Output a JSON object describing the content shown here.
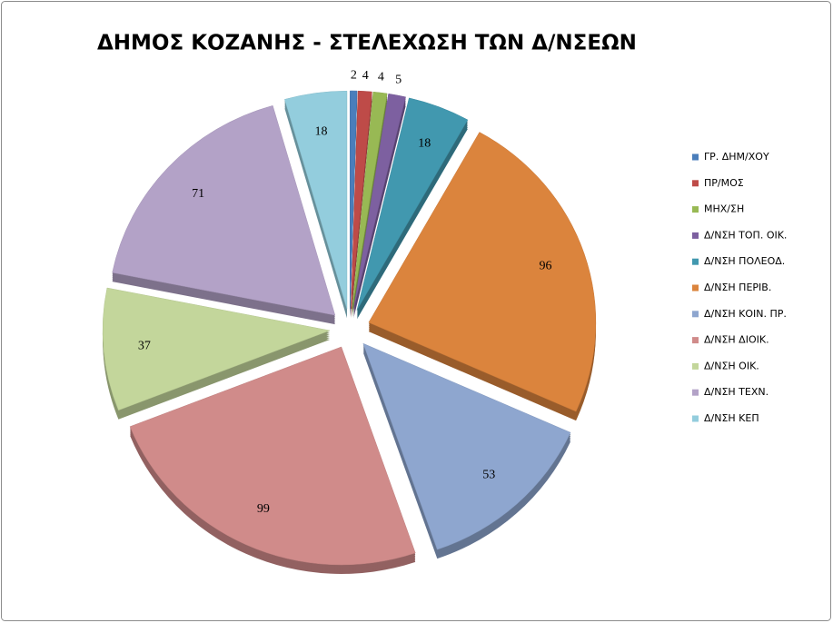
{
  "chart_data": {
    "type": "pie",
    "title": "ΔΗΜΟΣ ΚΟΖΑΝΗΣ  - ΣΤΕΛΕΧΩΣΗ ΤΩΝ Δ/ΝΣΕΩΝ",
    "categories": [
      "ΓΡ. ΔΗΜ/ΧΟΥ",
      "ΠΡ/ΜΟΣ",
      "ΜΗΧ/ΣΗ",
      "Δ/ΝΣΗ ΤΟΠ. ΟΙΚ.",
      "Δ/ΝΣΗ ΠΟΛΕΟΔ.",
      "Δ/ΝΣΗ ΠΕΡΙΒ.",
      "Δ/ΝΣΗ ΚΟΙΝ. ΠΡ.",
      "Δ/ΝΣΗ ΔΙΟΙΚ.",
      "Δ/ΝΣΗ ΟΙΚ.",
      "Δ/ΝΣΗ ΤΕΧΝ.",
      "Δ/ΝΣΗ ΚΕΠ"
    ],
    "values": [
      2,
      4,
      4,
      5,
      18,
      96,
      53,
      99,
      37,
      71,
      18
    ],
    "colors": [
      "#4a7ebb",
      "#be4b48",
      "#98b954",
      "#7d60a0",
      "#4198af",
      "#db843d",
      "#8ea6cf",
      "#d08b8a",
      "#c3d69b",
      "#b3a2c7",
      "#93cddd"
    ],
    "legend": "right"
  }
}
